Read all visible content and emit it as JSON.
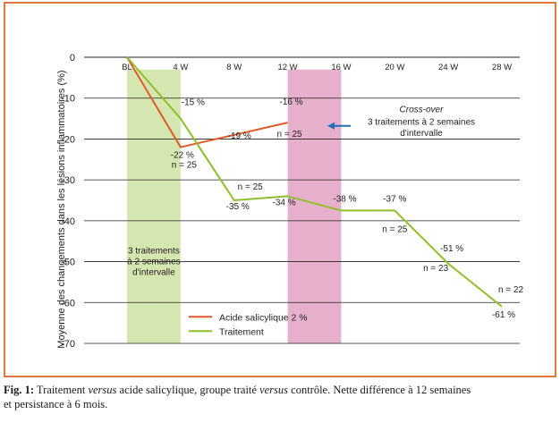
{
  "chart_data": {
    "type": "line",
    "ylabel": "Moyenne des changements dans les lésions inflammatoires (%)",
    "ylim": [
      -70,
      0
    ],
    "y_ticks": [
      0,
      -10,
      -20,
      -30,
      -40,
      -50,
      -60,
      -70
    ],
    "x_categories": [
      "BL",
      "4 W",
      "8 W",
      "12 W",
      "16 W",
      "20 W",
      "24 W",
      "28 W"
    ],
    "grid": true,
    "series": [
      {
        "name": "Acide salicylique 2 %",
        "color": "#e05a2a",
        "points": [
          {
            "x": 0,
            "y": 0
          },
          {
            "x": 4,
            "y": -22
          },
          {
            "x": 12,
            "y": -16
          }
        ]
      },
      {
        "name": "Traitement",
        "color": "#8fbf2a",
        "points": [
          {
            "x": 0,
            "y": 0
          },
          {
            "x": 4,
            "y": -15
          },
          {
            "x": 8,
            "y": -35
          },
          {
            "x": 12,
            "y": -34
          },
          {
            "x": 16,
            "y": -37.5
          },
          {
            "x": 20,
            "y": -37.5
          },
          {
            "x": 24,
            "y": -50.5
          },
          {
            "x": 28,
            "y": -61
          }
        ]
      }
    ],
    "shaded_regions": [
      {
        "x_start": 0,
        "x_end": 4,
        "color": "#d6e6b0",
        "label_lines": [
          "3 traitements",
          "à 2 semaines",
          "d'intervalle"
        ]
      },
      {
        "x_start": 12,
        "x_end": 16,
        "color": "#e6b0cc"
      }
    ],
    "data_labels": [
      {
        "x": 4,
        "y": -15,
        "text": "-15 %",
        "dx": 14,
        "dy": -15
      },
      {
        "x": 4,
        "y": -22,
        "text": "-22 %",
        "dx": 2,
        "dy": 12
      },
      {
        "x": 4,
        "y": -22,
        "text": "n = 25",
        "dx": 4,
        "dy": 23
      },
      {
        "x": 12,
        "y": -16,
        "text": "-16 %",
        "dx": 4,
        "dy": -20
      },
      {
        "x": 12,
        "y": -16,
        "text": "n = 25",
        "dx": 2,
        "dy": 16
      },
      {
        "x": 8,
        "y": -19,
        "text": "-19 %",
        "dx": 6,
        "dy": 4
      },
      {
        "x": 8,
        "y": -35,
        "text": "n = 25",
        "dx": 18,
        "dy": -12
      },
      {
        "x": 8,
        "y": -35,
        "text": "-35 %",
        "dx": 4,
        "dy": 10
      },
      {
        "x": 12,
        "y": -34,
        "text": "-34 %",
        "dx": -4,
        "dy": 10
      },
      {
        "x": 16,
        "y": -37.5,
        "text": "-38 %",
        "dx": 4,
        "dy": -10
      },
      {
        "x": 20,
        "y": -37.5,
        "text": "-37 %",
        "dx": 0,
        "dy": -10
      },
      {
        "x": 20,
        "y": -37.5,
        "text": "n = 25",
        "dx": 0,
        "dy": 24
      },
      {
        "x": 24,
        "y": -50.5,
        "text": "-51 %",
        "dx": 4,
        "dy": -14
      },
      {
        "x": 24,
        "y": -50.5,
        "text": "n = 23",
        "dx": -14,
        "dy": 8
      },
      {
        "x": 28,
        "y": -61,
        "text": "n = 22",
        "dx": 10,
        "dy": -16
      },
      {
        "x": 28,
        "y": -61,
        "text": "-61 %",
        "dx": 2,
        "dy": 12
      }
    ],
    "annotation": {
      "line1": "Cross-over",
      "line2": "3 traitements à 2 semaines",
      "line3": "d'intervalle",
      "arrow_color": "#1f6fb5"
    },
    "legend": {
      "position": "bottom-center",
      "entries": [
        "Acide salicylique 2 %",
        "Traitement"
      ]
    }
  },
  "caption": {
    "label": "Fig. 1:",
    "part1": " Traitement ",
    "em1": "versus",
    "part2": " acide salicylique, groupe traité ",
    "em2": "versus",
    "part3": " contrôle. Nette différence à 12 semaines",
    "line2": "et persistance à 6 mois."
  }
}
